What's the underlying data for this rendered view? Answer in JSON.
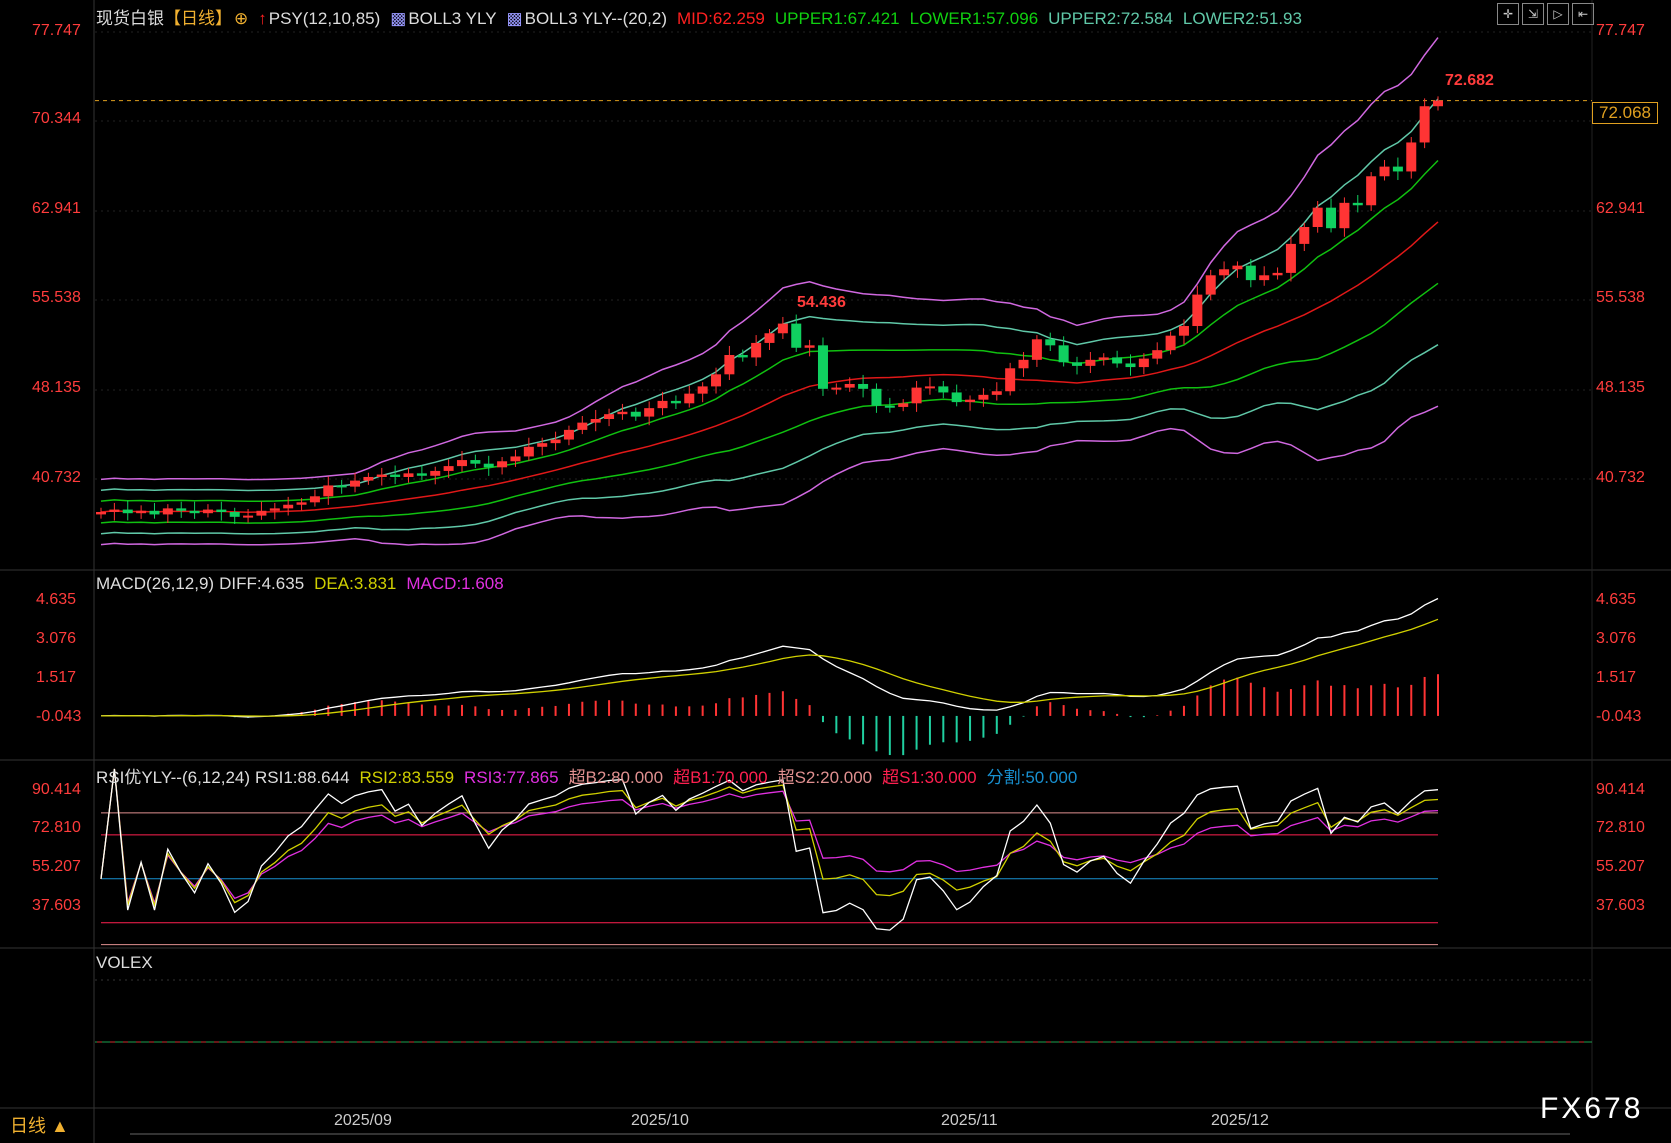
{
  "header": {
    "symbol": "现货白银",
    "period_tag": "【日线】",
    "psy": "PSY(12,10,85)",
    "boll1": "BOLL3 YLY",
    "boll2": "BOLL3 YLY--(20,2)",
    "mid": "MID:62.259",
    "upper1": "UPPER1:67.421",
    "lower1": "LOWER1:57.096",
    "upper2": "UPPER2:72.584",
    "lower2": "LOWER2:51.93"
  },
  "toolbar": {
    "icons": [
      "crosshair-icon",
      "zoom-in-icon",
      "play-icon",
      "pin-icon"
    ]
  },
  "price_axis": [
    "77.747",
    "70.344",
    "62.941",
    "55.538",
    "48.135",
    "40.732"
  ],
  "current_price": "72.068",
  "high_label": "72.682",
  "peak_label": "54.436",
  "macd": {
    "title": "MACD(26,12,9)",
    "diff": "DIFF:4.635",
    "dea": "DEA:3.831",
    "macd": "MACD:1.608",
    "axis": [
      "4.635",
      "3.076",
      "1.517",
      "-0.043"
    ]
  },
  "rsi": {
    "title": "RSI优YLY--(6,12,24)",
    "rsi1": "RSI1:88.644",
    "rsi2": "RSI2:83.559",
    "rsi3": "RSI3:77.865",
    "b2": "超B2:80.000",
    "b1": "超B1:70.000",
    "s2": "超S2:20.000",
    "s1": "超S1:30.000",
    "split": "分割:50.000",
    "axis": [
      "90.414",
      "72.810",
      "55.207",
      "37.603"
    ]
  },
  "volex": {
    "title": "VOLEX"
  },
  "period": "日线 ▲",
  "dates": [
    "2025/09",
    "2025/10",
    "2025/11",
    "2025/12"
  ],
  "watermark": "FX678",
  "colors": {
    "up": "#ff3434",
    "down": "#10d060",
    "mid": "#e01818",
    "band1": "#10c010",
    "band2": "#60c8a8",
    "band3": "#d068e0",
    "rsi1": "#ffffff",
    "rsi2": "#d0d000",
    "rsi3": "#e030e0"
  },
  "chart_data": {
    "type": "candlestick",
    "closes": [
      38.0,
      38.2,
      37.9,
      38.1,
      37.8,
      38.3,
      38.1,
      37.9,
      38.2,
      38.0,
      37.6,
      37.7,
      38.1,
      38.3,
      38.6,
      38.8,
      39.3,
      40.2,
      40.1,
      40.6,
      40.9,
      41.1,
      40.9,
      41.2,
      41.0,
      41.4,
      41.8,
      42.3,
      42.0,
      41.7,
      42.2,
      42.6,
      43.4,
      43.7,
      44.0,
      44.8,
      45.4,
      45.7,
      46.1,
      46.3,
      45.9,
      46.6,
      47.2,
      47.0,
      47.8,
      48.4,
      49.4,
      51.0,
      50.8,
      52.0,
      52.8,
      53.6,
      51.6,
      51.8,
      48.2,
      48.3,
      48.6,
      48.2,
      46.8,
      46.7,
      47.0,
      48.3,
      48.4,
      47.9,
      47.1,
      47.3,
      47.7,
      48.0,
      49.9,
      50.6,
      52.3,
      51.8,
      50.4,
      50.1,
      50.6,
      50.8,
      50.3,
      50.0,
      50.7,
      51.4,
      52.6,
      53.4,
      56.0,
      57.6,
      58.1,
      58.4,
      57.2,
      57.6,
      57.8,
      60.2,
      61.6,
      63.2,
      61.5,
      63.6,
      63.4,
      65.8,
      66.6,
      66.2,
      68.6,
      71.6,
      72.068
    ],
    "price_range": [
      40.732,
      77.747
    ]
  }
}
